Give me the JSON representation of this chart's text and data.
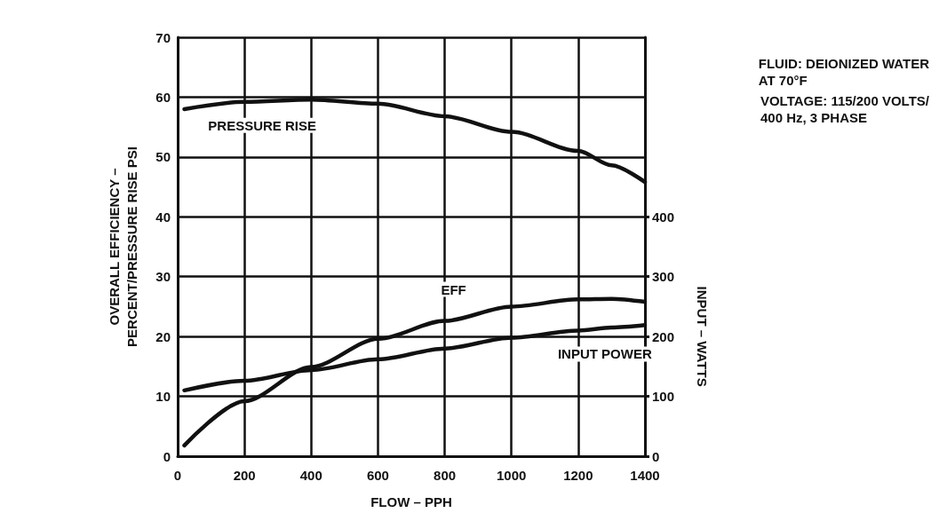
{
  "chart_data": {
    "type": "line",
    "xlabel": "FLOW – PPH",
    "ylabel": "OVERALL EFFICIENCY –\nPERCENT/PRESSURE RISE PSI",
    "y2label": "INPUT – WATTS",
    "x": [
      20,
      200,
      400,
      600,
      800,
      1000,
      1200,
      1300,
      1400
    ],
    "series": [
      {
        "name": "PRESSURE RISE",
        "color": "#111111",
        "values": [
          58.0,
          59.2,
          59.6,
          58.9,
          56.8,
          54.2,
          51.0,
          48.6,
          45.8
        ]
      },
      {
        "name": "EFF",
        "color": "#111111",
        "values": [
          1.8,
          9.2,
          14.9,
          19.6,
          22.6,
          25.0,
          26.2,
          26.3,
          25.8
        ]
      },
      {
        "name": "INPUT POWER",
        "color": "#111111",
        "axis": "y2",
        "values": [
          110,
          126,
          144,
          162,
          180,
          198,
          210,
          215,
          219
        ]
      }
    ],
    "xlim": [
      0,
      1400
    ],
    "xticks": [
      0,
      200,
      400,
      600,
      800,
      1000,
      1200,
      1400
    ],
    "ylim": [
      0,
      70
    ],
    "yticks": [
      0,
      10,
      20,
      30,
      40,
      50,
      60,
      70
    ],
    "y2lim": [
      0,
      700
    ],
    "y2ticks": [
      0,
      100,
      200,
      300,
      400
    ],
    "grid": true,
    "legend": false,
    "marker": "none",
    "line_style": "solid",
    "annotations": [
      "FLUID: DEIONIZED WATER\nAT 70°F",
      "VOLTAGE: 115/200 VOLTS/\n400 Hz, 3 PHASE"
    ]
  }
}
